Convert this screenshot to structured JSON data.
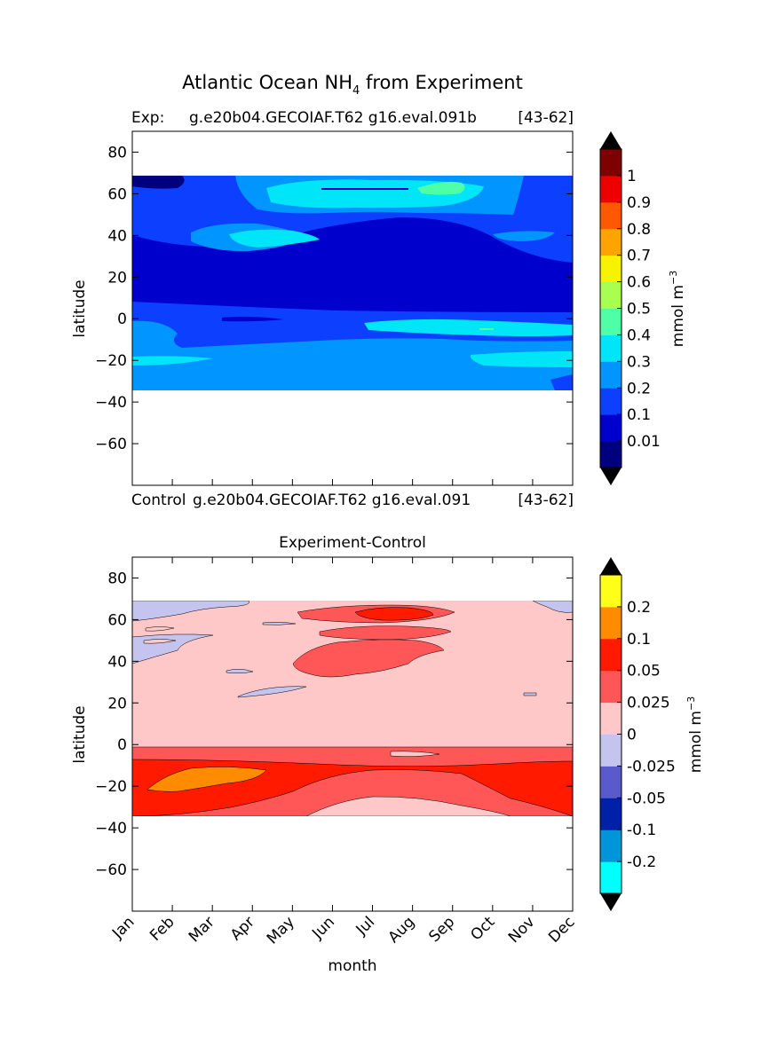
{
  "figure": {
    "title_main": "Atlantic Ocean NH",
    "title_sub": "4",
    "title_tail": " from Experiment"
  },
  "top": {
    "label_left": "Exp:",
    "label_center": "g.e20b04.GECOIAF.T62 g16.eval.091b",
    "label_right": "[43-62]",
    "bottom_left": "Control",
    "bottom_center": "g.e20b04.GECOIAF.T62 g16.eval.091",
    "bottom_right": "[43-62]"
  },
  "bottom": {
    "title": "Experiment-Control"
  },
  "chart_data": [
    {
      "type": "heatmap",
      "name": "Experiment NH4",
      "title": "Atlantic Ocean NH4 from Experiment",
      "xlabel": "",
      "ylabel": "latitude",
      "xlim": [
        0,
        11
      ],
      "ylim": [
        -80,
        90
      ],
      "yticks": [
        -60,
        -40,
        -20,
        0,
        20,
        40,
        60,
        80
      ],
      "data_lat_range": [
        -34,
        69
      ],
      "colorbar": {
        "label": "mmol m",
        "label_sup": "−3",
        "ticks": [
          "0.01",
          "0.1",
          "0.2",
          "0.3",
          "0.4",
          "0.5",
          "0.6",
          "0.7",
          "0.8",
          "0.9",
          "1"
        ],
        "colors": [
          "#00007f",
          "#0000cd",
          "#0d3fff",
          "#0095ff",
          "#00e5f7",
          "#4fffa8",
          "#a8ff4f",
          "#f7f200",
          "#ffa300",
          "#ff5900",
          "#ef0000",
          "#7f0000"
        ],
        "extend": "both"
      }
    },
    {
      "type": "heatmap",
      "name": "Experiment-Control NH4 difference",
      "title": "Experiment-Control",
      "xlabel": "month",
      "ylabel": "latitude",
      "xticks": [
        "Jan",
        "Feb",
        "Mar",
        "Apr",
        "May",
        "Jun",
        "Jul",
        "Aug",
        "Sep",
        "Oct",
        "Nov",
        "Dec"
      ],
      "xlim": [
        0,
        11
      ],
      "ylim": [
        -80,
        90
      ],
      "yticks": [
        -60,
        -40,
        -20,
        0,
        20,
        40,
        60,
        80
      ],
      "data_lat_range": [
        -34,
        69
      ],
      "colorbar": {
        "label": "mmol m",
        "label_sup": "−3",
        "ticks": [
          "-0.2",
          "-0.1",
          "-0.05",
          "-0.025",
          "0",
          "0.025",
          "0.05",
          "0.1",
          "0.2"
        ],
        "colors": [
          "#00ffff",
          "#0094d9",
          "#0020a8",
          "#5a5acc",
          "#c4c4ee",
          "#ffc8c8",
          "#ff5757",
          "#ff1a00",
          "#ff8c00",
          "#ffff1a"
        ],
        "extend": "both"
      }
    }
  ],
  "colors": {
    "deep_navy": "#00007f",
    "dark_blue": "#0000cd",
    "blue": "#0d3fff",
    "azure": "#0095ff",
    "cyan": "#00e5f7",
    "mint": "#4fffa8",
    "pale_red": "#ffc8c8",
    "salmon": "#ff5757",
    "red": "#ff1a00",
    "orange": "#ff8c00",
    "lavender": "#c4c4ee"
  }
}
